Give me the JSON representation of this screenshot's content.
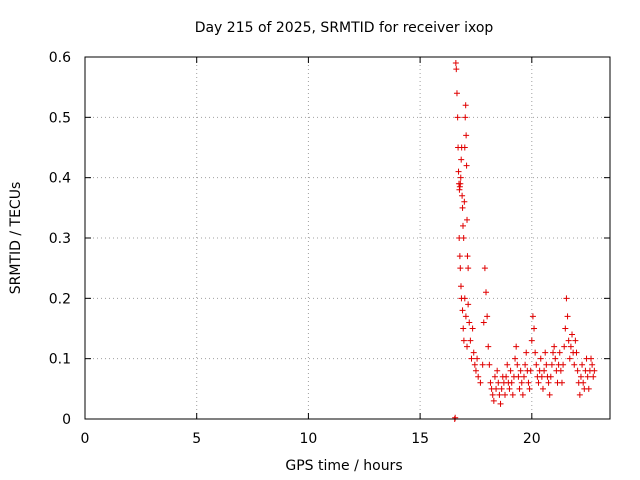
{
  "chart_data": {
    "type": "scatter",
    "title": "Day 215 of 2025, SRMTID for receiver ixop",
    "xlabel": "GPS time / hours",
    "ylabel": "SRMTID / TECUs",
    "xlim": [
      0,
      23.5
    ],
    "ylim": [
      0,
      0.6
    ],
    "xticks": [
      0,
      5,
      10,
      15,
      20
    ],
    "yticks": [
      0,
      0.1,
      0.2,
      0.3,
      0.4,
      0.5,
      0.6
    ],
    "xtick_labels": [
      "0",
      "5",
      "10",
      "15",
      "20"
    ],
    "ytick_labels": [
      "0",
      "0.1",
      "0.2",
      "0.3",
      "0.4",
      "0.5",
      "0.6"
    ],
    "grid": true,
    "marker": "+",
    "color": "#e00000",
    "series": [
      {
        "name": "SRMTID",
        "points": [
          [
            16.55,
            0.0
          ],
          [
            16.57,
            0.002
          ],
          [
            16.6,
            0.59
          ],
          [
            16.62,
            0.58
          ],
          [
            16.65,
            0.54
          ],
          [
            16.68,
            0.5
          ],
          [
            16.7,
            0.45
          ],
          [
            16.72,
            0.41
          ],
          [
            16.74,
            0.39
          ],
          [
            16.76,
            0.38
          ],
          [
            16.78,
            0.385
          ],
          [
            16.8,
            0.39
          ],
          [
            16.82,
            0.4
          ],
          [
            16.84,
            0.43
          ],
          [
            16.86,
            0.45
          ],
          [
            16.88,
            0.37
          ],
          [
            16.9,
            0.35
          ],
          [
            16.92,
            0.32
          ],
          [
            16.95,
            0.3
          ],
          [
            16.98,
            0.36
          ],
          [
            17.0,
            0.45
          ],
          [
            17.02,
            0.5
          ],
          [
            17.04,
            0.52
          ],
          [
            17.06,
            0.47
          ],
          [
            17.08,
            0.42
          ],
          [
            17.1,
            0.33
          ],
          [
            17.12,
            0.27
          ],
          [
            17.15,
            0.25
          ],
          [
            16.75,
            0.3
          ],
          [
            16.78,
            0.27
          ],
          [
            16.8,
            0.25
          ],
          [
            16.83,
            0.22
          ],
          [
            16.85,
            0.2
          ],
          [
            16.9,
            0.18
          ],
          [
            16.93,
            0.15
          ],
          [
            16.96,
            0.13
          ],
          [
            17.0,
            0.2
          ],
          [
            17.05,
            0.17
          ],
          [
            17.1,
            0.12
          ],
          [
            17.15,
            0.19
          ],
          [
            17.2,
            0.16
          ],
          [
            17.25,
            0.13
          ],
          [
            17.3,
            0.1
          ],
          [
            17.35,
            0.15
          ],
          [
            17.4,
            0.11
          ],
          [
            17.45,
            0.09
          ],
          [
            17.5,
            0.08
          ],
          [
            17.55,
            0.1
          ],
          [
            17.6,
            0.07
          ],
          [
            17.7,
            0.06
          ],
          [
            17.8,
            0.09
          ],
          [
            17.85,
            0.16
          ],
          [
            17.9,
            0.25
          ],
          [
            17.95,
            0.21
          ],
          [
            18.0,
            0.17
          ],
          [
            18.05,
            0.12
          ],
          [
            18.1,
            0.09
          ],
          [
            18.15,
            0.06
          ],
          [
            18.2,
            0.05
          ],
          [
            18.25,
            0.04
          ],
          [
            18.3,
            0.03
          ],
          [
            18.35,
            0.07
          ],
          [
            18.4,
            0.05
          ],
          [
            18.45,
            0.08
          ],
          [
            18.5,
            0.06
          ],
          [
            18.55,
            0.04
          ],
          [
            18.6,
            0.025
          ],
          [
            18.65,
            0.05
          ],
          [
            18.7,
            0.07
          ],
          [
            18.75,
            0.06
          ],
          [
            18.8,
            0.04
          ],
          [
            18.85,
            0.07
          ],
          [
            18.9,
            0.09
          ],
          [
            18.95,
            0.06
          ],
          [
            19.0,
            0.05
          ],
          [
            19.05,
            0.08
          ],
          [
            19.1,
            0.06
          ],
          [
            19.15,
            0.04
          ],
          [
            19.2,
            0.07
          ],
          [
            19.25,
            0.1
          ],
          [
            19.3,
            0.12
          ],
          [
            19.35,
            0.09
          ],
          [
            19.4,
            0.07
          ],
          [
            19.45,
            0.05
          ],
          [
            19.5,
            0.08
          ],
          [
            19.55,
            0.06
          ],
          [
            19.6,
            0.04
          ],
          [
            19.65,
            0.07
          ],
          [
            19.7,
            0.09
          ],
          [
            19.75,
            0.11
          ],
          [
            19.8,
            0.08
          ],
          [
            19.85,
            0.06
          ],
          [
            19.9,
            0.05
          ],
          [
            19.95,
            0.08
          ],
          [
            20.0,
            0.13
          ],
          [
            20.05,
            0.17
          ],
          [
            20.1,
            0.15
          ],
          [
            20.15,
            0.11
          ],
          [
            20.2,
            0.09
          ],
          [
            20.25,
            0.07
          ],
          [
            20.3,
            0.06
          ],
          [
            20.35,
            0.08
          ],
          [
            20.4,
            0.1
          ],
          [
            20.45,
            0.07
          ],
          [
            20.5,
            0.05
          ],
          [
            20.55,
            0.08
          ],
          [
            20.6,
            0.11
          ],
          [
            20.65,
            0.09
          ],
          [
            20.7,
            0.07
          ],
          [
            20.75,
            0.06
          ],
          [
            20.8,
            0.04
          ],
          [
            20.85,
            0.07
          ],
          [
            20.9,
            0.09
          ],
          [
            20.95,
            0.11
          ],
          [
            21.0,
            0.12
          ],
          [
            21.05,
            0.1
          ],
          [
            21.1,
            0.08
          ],
          [
            21.15,
            0.06
          ],
          [
            21.2,
            0.09
          ],
          [
            21.25,
            0.11
          ],
          [
            21.3,
            0.08
          ],
          [
            21.35,
            0.06
          ],
          [
            21.4,
            0.09
          ],
          [
            21.45,
            0.12
          ],
          [
            21.5,
            0.15
          ],
          [
            21.55,
            0.2
          ],
          [
            21.6,
            0.17
          ],
          [
            21.65,
            0.13
          ],
          [
            21.7,
            0.1
          ],
          [
            21.75,
            0.12
          ],
          [
            21.8,
            0.14
          ],
          [
            21.85,
            0.11
          ],
          [
            21.9,
            0.09
          ],
          [
            21.95,
            0.13
          ],
          [
            22.0,
            0.11
          ],
          [
            22.05,
            0.08
          ],
          [
            22.1,
            0.06
          ],
          [
            22.15,
            0.04
          ],
          [
            22.2,
            0.07
          ],
          [
            22.25,
            0.09
          ],
          [
            22.3,
            0.06
          ],
          [
            22.35,
            0.05
          ],
          [
            22.4,
            0.08
          ],
          [
            22.45,
            0.1
          ],
          [
            22.5,
            0.07
          ],
          [
            22.55,
            0.05
          ],
          [
            22.6,
            0.08
          ],
          [
            22.65,
            0.1
          ],
          [
            22.7,
            0.09
          ],
          [
            22.75,
            0.07
          ],
          [
            22.8,
            0.08
          ]
        ]
      }
    ]
  }
}
